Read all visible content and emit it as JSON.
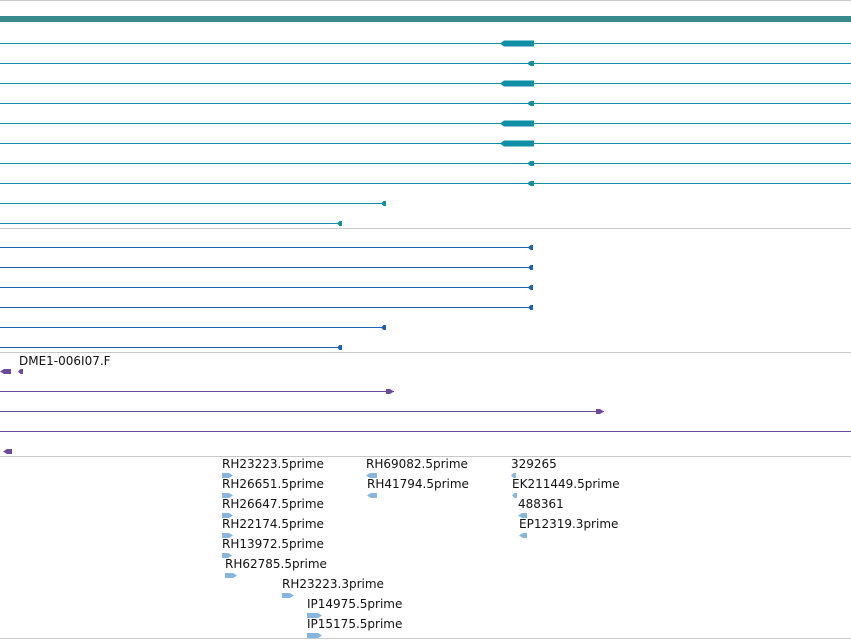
{
  "tracks": [
    {
      "id": "transcripts",
      "color": "#0f8fa6",
      "axis_color": "#3a8a8a",
      "rows": [
        {
          "kind": "gene_body",
          "features": [
            {
              "start": 0,
              "end": 851,
              "strand": "+"
            }
          ]
        },
        {
          "kind": "transcript",
          "features": [
            {
              "start": 0,
              "end": 851,
              "exon_start": 500,
              "exon_end": 534,
              "strand": "-"
            }
          ]
        },
        {
          "kind": "transcript",
          "features": [
            {
              "start": 0,
              "end": 851,
              "exon_start": 527,
              "exon_end": 534,
              "strand": "-"
            }
          ]
        },
        {
          "kind": "transcript",
          "features": [
            {
              "start": 0,
              "end": 851,
              "exon_start": 500,
              "exon_end": 534,
              "strand": "-"
            }
          ]
        },
        {
          "kind": "transcript",
          "features": [
            {
              "start": 0,
              "end": 851,
              "exon_start": 527,
              "exon_end": 534,
              "strand": "-"
            }
          ]
        },
        {
          "kind": "transcript",
          "features": [
            {
              "start": 0,
              "end": 851,
              "exon_start": 500,
              "exon_end": 534,
              "strand": "-"
            }
          ]
        },
        {
          "kind": "transcript",
          "features": [
            {
              "start": 0,
              "end": 851,
              "exon_start": 500,
              "exon_end": 534,
              "strand": "-"
            }
          ]
        },
        {
          "kind": "transcript",
          "features": [
            {
              "start": 0,
              "end": 851,
              "exon_start": 527,
              "exon_end": 534,
              "strand": "-"
            }
          ]
        },
        {
          "kind": "transcript",
          "features": [
            {
              "start": 0,
              "end": 851,
              "exon_start": 527,
              "exon_end": 534,
              "strand": "-"
            }
          ]
        },
        {
          "kind": "transcript",
          "features": [
            {
              "start": 0,
              "end": 386,
              "exon_start": 381,
              "exon_end": 386,
              "strand": "-"
            }
          ]
        },
        {
          "kind": "transcript",
          "features": [
            {
              "start": 0,
              "end": 342,
              "exon_start": 337,
              "exon_end": 342,
              "strand": "-"
            }
          ]
        }
      ]
    },
    {
      "id": "alignments",
      "color": "#1f63b8",
      "rows": [
        {
          "kind": "transcript",
          "features": [
            {
              "start": 0,
              "end": 533,
              "exon_start": 528,
              "exon_end": 533,
              "strand": "-"
            }
          ]
        },
        {
          "kind": "transcript",
          "features": [
            {
              "start": 0,
              "end": 533,
              "exon_start": 528,
              "exon_end": 533,
              "strand": "-"
            }
          ]
        },
        {
          "kind": "transcript",
          "features": [
            {
              "start": 0,
              "end": 533,
              "exon_start": 528,
              "exon_end": 533,
              "strand": "-"
            }
          ]
        },
        {
          "kind": "transcript",
          "features": [
            {
              "start": 0,
              "end": 533,
              "exon_start": 528,
              "exon_end": 533,
              "strand": "-"
            }
          ]
        },
        {
          "kind": "transcript",
          "features": [
            {
              "start": 0,
              "end": 386,
              "exon_start": 381,
              "exon_end": 386,
              "strand": "-"
            }
          ]
        },
        {
          "kind": "transcript",
          "features": [
            {
              "start": 0,
              "end": 342,
              "exon_start": 337,
              "exon_end": 342,
              "strand": "-"
            }
          ]
        }
      ]
    },
    {
      "id": "clones",
      "color": "#6e4a9e",
      "label": "DME1-006I07.F",
      "rows": [
        {
          "kind": "blocks",
          "features": [
            {
              "start": 0,
              "end": 11,
              "strand": "-"
            },
            {
              "start": 18,
              "end": 23,
              "strand": "-"
            }
          ]
        },
        {
          "kind": "transcript",
          "features": [
            {
              "start": 0,
              "end": 394,
              "exon_start": 386,
              "exon_end": 394,
              "strand": "+"
            }
          ]
        },
        {
          "kind": "transcript",
          "features": [
            {
              "start": 0,
              "end": 604,
              "exon_start": 596,
              "exon_end": 604,
              "strand": "+"
            }
          ]
        },
        {
          "kind": "transcript",
          "features": [
            {
              "start": 0,
              "end": 851,
              "strand": "+"
            }
          ]
        },
        {
          "kind": "blocks",
          "features": [
            {
              "start": 3,
              "end": 12,
              "strand": "-"
            }
          ]
        }
      ]
    },
    {
      "id": "ests",
      "color": "#86b6e0",
      "rows": [
        {
          "kind": "labeled",
          "features": [
            {
              "start": 222,
              "end": 233,
              "strand": "+",
              "label": "RH23223.5prime"
            },
            {
              "start": 366,
              "end": 377,
              "strand": "-",
              "label": "RH69082.5prime"
            },
            {
              "start": 511,
              "end": 516,
              "strand": "-",
              "label": "329265"
            }
          ]
        },
        {
          "kind": "labeled",
          "features": [
            {
              "start": 222,
              "end": 233,
              "strand": "+",
              "label": "RH26651.5prime"
            },
            {
              "start": 367,
              "end": 377,
              "strand": "-",
              "label": "RH41794.5prime"
            },
            {
              "start": 512,
              "end": 517,
              "strand": "-",
              "label": "EK211449.5prime"
            }
          ]
        },
        {
          "kind": "labeled",
          "features": [
            {
              "start": 222,
              "end": 233,
              "strand": "+",
              "label": "RH26647.5prime"
            },
            {
              "start": 518,
              "end": 527,
              "strand": "-",
              "label": "488361"
            }
          ]
        },
        {
          "kind": "labeled",
          "features": [
            {
              "start": 222,
              "end": 233,
              "strand": "+",
              "label": "RH22174.5prime"
            },
            {
              "start": 519,
              "end": 527,
              "strand": "-",
              "label": "EP12319.3prime"
            }
          ]
        },
        {
          "kind": "labeled",
          "features": [
            {
              "start": 222,
              "end": 232,
              "strand": "+",
              "label": "RH13972.5prime"
            }
          ]
        },
        {
          "kind": "labeled",
          "features": [
            {
              "start": 225,
              "end": 237,
              "strand": "+",
              "label": "RH62785.5prime"
            }
          ]
        },
        {
          "kind": "labeled",
          "features": [
            {
              "start": 282,
              "end": 294,
              "strand": "+",
              "label": "RH23223.3prime"
            }
          ]
        },
        {
          "kind": "labeled",
          "features": [
            {
              "start": 307,
              "end": 322,
              "strand": "+",
              "label": "IP14975.5prime"
            }
          ]
        },
        {
          "kind": "labeled",
          "features": [
            {
              "start": 307,
              "end": 322,
              "strand": "+",
              "label": "IP15175.5prime"
            }
          ]
        }
      ]
    }
  ]
}
